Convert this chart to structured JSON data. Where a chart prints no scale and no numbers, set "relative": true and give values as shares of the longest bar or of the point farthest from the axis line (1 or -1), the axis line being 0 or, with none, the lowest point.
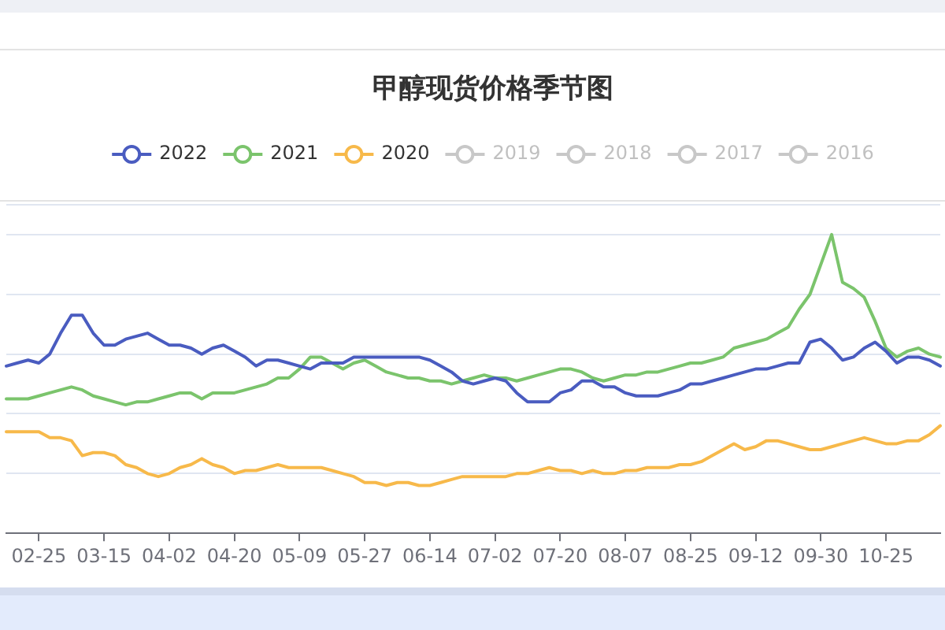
{
  "chart_data": {
    "type": "line",
    "title": "甲醇现货价格季节图",
    "relative": true,
    "grid": "y",
    "legend": "top",
    "categories": [
      null,
      null,
      null,
      "02-25",
      null,
      null,
      null,
      null,
      null,
      "03-15",
      null,
      null,
      null,
      null,
      null,
      "04-02",
      null,
      null,
      null,
      null,
      null,
      "04-20",
      null,
      null,
      null,
      null,
      null,
      "05-09",
      null,
      null,
      null,
      null,
      null,
      "05-27",
      null,
      null,
      null,
      null,
      null,
      "06-14",
      null,
      null,
      null,
      null,
      null,
      "07-02",
      null,
      null,
      null,
      null,
      null,
      "07-20",
      null,
      null,
      null,
      null,
      null,
      "08-07",
      null,
      null,
      null,
      null,
      null,
      "08-25",
      null,
      null,
      null,
      null,
      null,
      "09-12",
      null,
      null,
      null,
      null,
      null,
      "09-30",
      null,
      null,
      null,
      null,
      null,
      "10-25",
      null,
      null,
      null,
      null,
      null
    ],
    "series": [
      {
        "name": "2022",
        "color": "#4a5cc0",
        "values": [
          0.56,
          0.57,
          0.58,
          0.57,
          0.6,
          0.67,
          0.73,
          0.73,
          0.67,
          0.63,
          0.63,
          0.65,
          0.66,
          0.67,
          0.65,
          0.63,
          0.63,
          0.62,
          0.6,
          0.62,
          0.63,
          0.61,
          0.59,
          0.56,
          0.58,
          0.58,
          0.57,
          0.56,
          0.55,
          0.57,
          0.57,
          0.57,
          0.59,
          0.59,
          0.59,
          0.59,
          0.59,
          0.59,
          0.59,
          0.58,
          0.56,
          0.54,
          0.51,
          0.5,
          0.51,
          0.52,
          0.51,
          0.47,
          0.44,
          0.44,
          0.44,
          0.47,
          0.48,
          0.51,
          0.51,
          0.49,
          0.49,
          0.47,
          0.46,
          0.46,
          0.46,
          0.47,
          0.48,
          0.5,
          0.5,
          0.51,
          0.52,
          0.53,
          0.54,
          0.55,
          0.55,
          0.56,
          0.57,
          0.57,
          0.64,
          0.65,
          0.62,
          0.58,
          0.59,
          0.62,
          0.64,
          0.61,
          0.57,
          0.59,
          0.59,
          0.58,
          0.56
        ]
      },
      {
        "name": "2021",
        "color": "#7bc46c",
        "values": [
          0.45,
          0.45,
          0.45,
          0.46,
          0.47,
          0.48,
          0.49,
          0.48,
          0.46,
          0.45,
          0.44,
          0.43,
          0.44,
          0.44,
          0.45,
          0.46,
          0.47,
          0.47,
          0.45,
          0.47,
          0.47,
          0.47,
          0.48,
          0.49,
          0.5,
          0.52,
          0.52,
          0.55,
          0.59,
          0.59,
          0.57,
          0.55,
          0.57,
          0.58,
          0.56,
          0.54,
          0.53,
          0.52,
          0.52,
          0.51,
          0.51,
          0.5,
          0.51,
          0.52,
          0.53,
          0.52,
          0.52,
          0.51,
          0.52,
          0.53,
          0.54,
          0.55,
          0.55,
          0.54,
          0.52,
          0.51,
          0.52,
          0.53,
          0.53,
          0.54,
          0.54,
          0.55,
          0.56,
          0.57,
          0.57,
          0.58,
          0.59,
          0.62,
          0.63,
          0.64,
          0.65,
          0.67,
          0.69,
          0.75,
          0.8,
          0.9,
          1,
          0.84,
          0.82,
          0.79,
          0.71,
          0.62,
          0.59,
          0.61,
          0.62,
          0.6,
          0.59
        ]
      },
      {
        "name": "2020",
        "color": "#f7b94a",
        "values": [
          0.34,
          0.34,
          0.34,
          0.34,
          0.32,
          0.32,
          0.31,
          0.26,
          0.27,
          0.27,
          0.26,
          0.23,
          0.22,
          0.2,
          0.19,
          0.2,
          0.22,
          0.23,
          0.25,
          0.23,
          0.22,
          0.2,
          0.21,
          0.21,
          0.22,
          0.23,
          0.22,
          0.22,
          0.22,
          0.22,
          0.21,
          0.2,
          0.19,
          0.17,
          0.17,
          0.16,
          0.17,
          0.17,
          0.16,
          0.16,
          0.17,
          0.18,
          0.19,
          0.19,
          0.19,
          0.19,
          0.19,
          0.2,
          0.2,
          0.21,
          0.22,
          0.21,
          0.21,
          0.2,
          0.21,
          0.2,
          0.2,
          0.21,
          0.21,
          0.22,
          0.22,
          0.22,
          0.23,
          0.23,
          0.24,
          0.26,
          0.28,
          0.3,
          0.28,
          0.29,
          0.31,
          0.31,
          0.3,
          0.29,
          0.28,
          0.28,
          0.29,
          0.3,
          0.31,
          0.32,
          0.31,
          0.3,
          0.3,
          0.31,
          0.31,
          0.33,
          0.36
        ]
      },
      {
        "name": "2019",
        "color": "#cccccc",
        "values": [
          null,
          null,
          null,
          null,
          null,
          null,
          null,
          null,
          null,
          null,
          null,
          null,
          null,
          null,
          null,
          null,
          null,
          null,
          null,
          null,
          null,
          null,
          null,
          null,
          null,
          null,
          null,
          null,
          null,
          null,
          null,
          null,
          null,
          null,
          null,
          null,
          null,
          null,
          null,
          null,
          null,
          null,
          null,
          null,
          null,
          null,
          null,
          null,
          null,
          null,
          null,
          null,
          null,
          null,
          null,
          null,
          null,
          null,
          null,
          null,
          null,
          null,
          null,
          null,
          null,
          null,
          null,
          null,
          null,
          null,
          null,
          null,
          null,
          null,
          null,
          null,
          null,
          null,
          null,
          null,
          null,
          null,
          null,
          null,
          null,
          null,
          null
        ]
      },
      {
        "name": "2018",
        "color": "#cccccc",
        "values": [
          null,
          null,
          null,
          null,
          null,
          null,
          null,
          null,
          null,
          null,
          null,
          null,
          null,
          null,
          null,
          null,
          null,
          null,
          null,
          null,
          null,
          null,
          null,
          null,
          null,
          null,
          null,
          null,
          null,
          null,
          null,
          null,
          null,
          null,
          null,
          null,
          null,
          null,
          null,
          null,
          null,
          null,
          null,
          null,
          null,
          null,
          null,
          null,
          null,
          null,
          null,
          null,
          null,
          null,
          null,
          null,
          null,
          null,
          null,
          null,
          null,
          null,
          null,
          null,
          null,
          null,
          null,
          null,
          null,
          null,
          null,
          null,
          null,
          null,
          null,
          null,
          null,
          null,
          null,
          null,
          null,
          null,
          null,
          null,
          null,
          null,
          null
        ]
      },
      {
        "name": "2017",
        "color": "#cccccc",
        "values": [
          null,
          null,
          null,
          null,
          null,
          null,
          null,
          null,
          null,
          null,
          null,
          null,
          null,
          null,
          null,
          null,
          null,
          null,
          null,
          null,
          null,
          null,
          null,
          null,
          null,
          null,
          null,
          null,
          null,
          null,
          null,
          null,
          null,
          null,
          null,
          null,
          null,
          null,
          null,
          null,
          null,
          null,
          null,
          null,
          null,
          null,
          null,
          null,
          null,
          null,
          null,
          null,
          null,
          null,
          null,
          null,
          null,
          null,
          null,
          null,
          null,
          null,
          null,
          null,
          null,
          null,
          null,
          null,
          null,
          null,
          null,
          null,
          null,
          null,
          null,
          null,
          null,
          null,
          null,
          null,
          null,
          null,
          null,
          null,
          null,
          null,
          null
        ]
      },
      {
        "name": "2016",
        "color": "#cccccc",
        "values": [
          null,
          null,
          null,
          null,
          null,
          null,
          null,
          null,
          null,
          null,
          null,
          null,
          null,
          null,
          null,
          null,
          null,
          null,
          null,
          null,
          null,
          null,
          null,
          null,
          null,
          null,
          null,
          null,
          null,
          null,
          null,
          null,
          null,
          null,
          null,
          null,
          null,
          null,
          null,
          null,
          null,
          null,
          null,
          null,
          null,
          null,
          null,
          null,
          null,
          null,
          null,
          null,
          null,
          null,
          null,
          null,
          null,
          null,
          null,
          null,
          null,
          null,
          null,
          null,
          null,
          null,
          null,
          null,
          null,
          null,
          null,
          null,
          null,
          null,
          null,
          null,
          null,
          null,
          null,
          null,
          null,
          null,
          null,
          null,
          null,
          null,
          null
        ]
      }
    ]
  }
}
